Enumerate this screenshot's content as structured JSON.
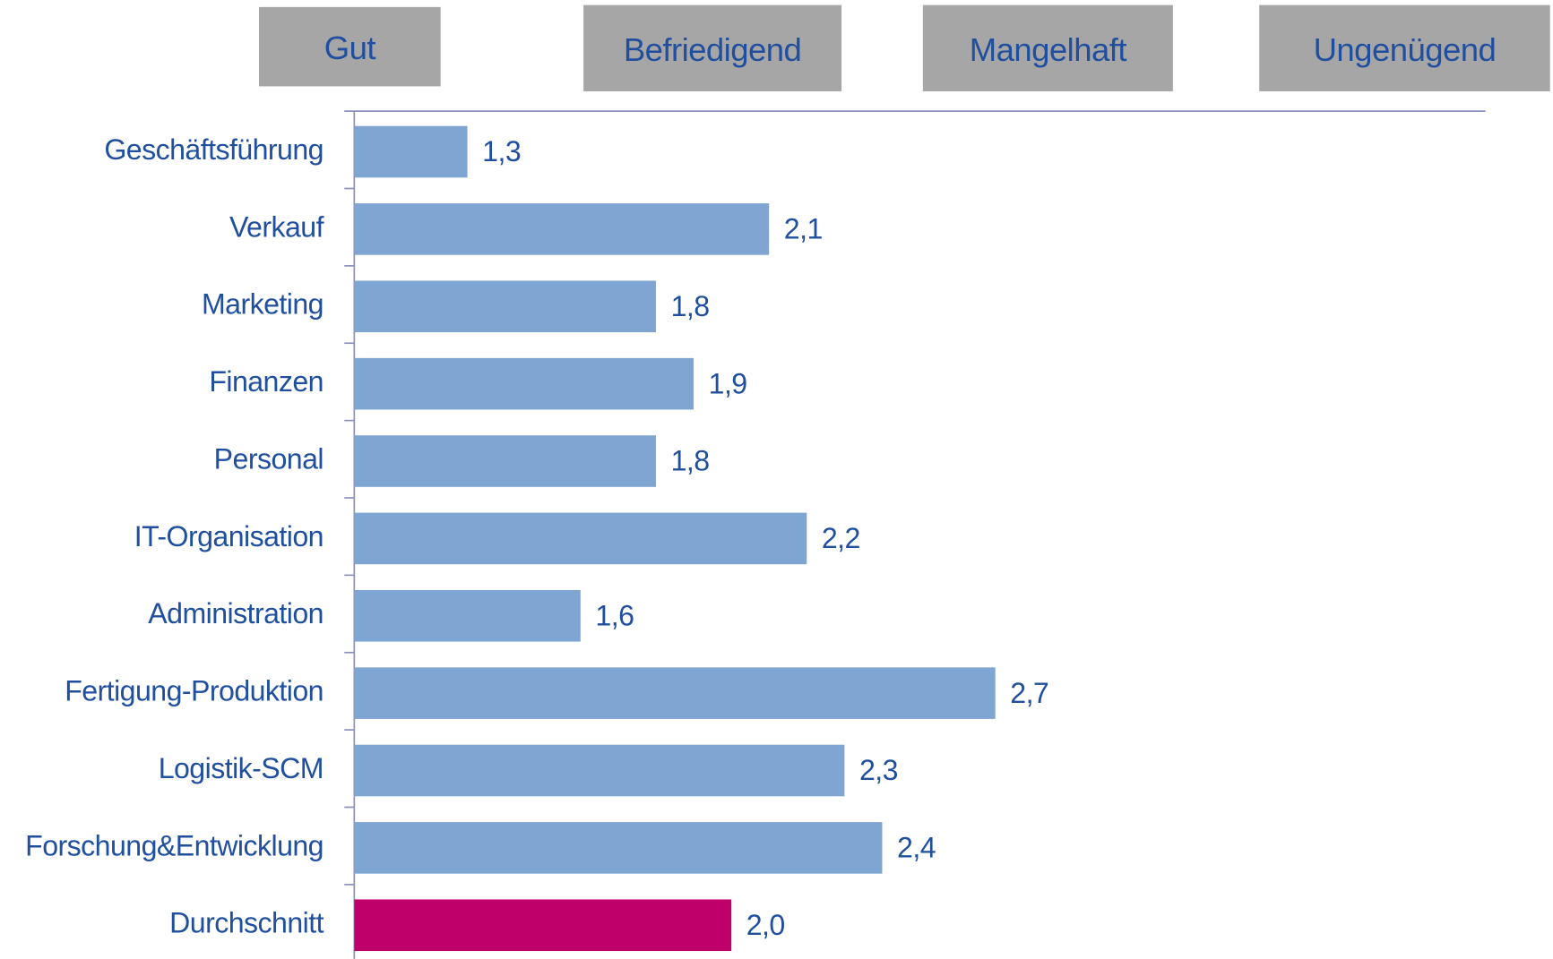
{
  "chart_data": {
    "type": "bar",
    "orientation": "horizontal",
    "grade_labels": [
      "Gut",
      "Befriedigend",
      "Mangelhaft",
      "Ungenügend"
    ],
    "categories": [
      "Geschäftsführung",
      "Verkauf",
      "Marketing",
      "Finanzen",
      "Personal",
      "IT-Organisation",
      "Administration",
      "Fertigung-Produktion",
      "Logistik-SCM",
      "Forschung&Entwicklung",
      "Durchschnitt"
    ],
    "values": [
      1.3,
      2.1,
      1.8,
      1.9,
      1.8,
      2.2,
      1.6,
      2.7,
      2.3,
      2.4,
      2.0
    ],
    "value_labels": [
      "1,3",
      "2,1",
      "1,8",
      "1,9",
      "1,8",
      "2,2",
      "1,6",
      "2,7",
      "2,3",
      "2,4",
      "2,0"
    ],
    "colors": [
      "#7fa5d3",
      "#7fa5d3",
      "#7fa5d3",
      "#7fa5d3",
      "#7fa5d3",
      "#7fa5d3",
      "#7fa5d3",
      "#7fa5d3",
      "#7fa5d3",
      "#7fa5d3",
      "#c0006a"
    ],
    "xlim": [
      1,
      4
    ]
  }
}
